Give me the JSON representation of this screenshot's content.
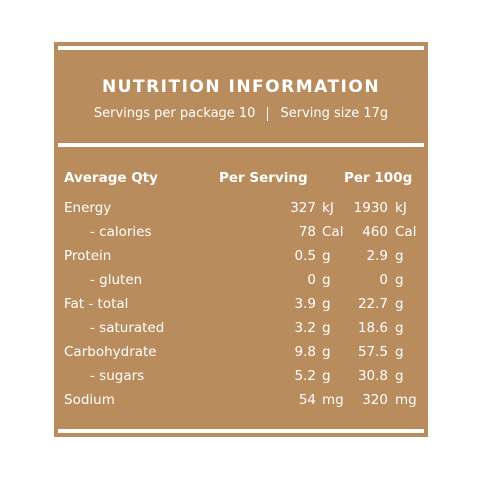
{
  "panel": {
    "title": "NUTRITION INFORMATION",
    "servings_text": "Servings per package 10",
    "serving_size_text": "Serving size 17g"
  },
  "table": {
    "headers": {
      "label": "Average Qty",
      "per_serving": "Per Serving",
      "per_100g": "Per 100g"
    },
    "rows": [
      {
        "label": "Energy",
        "ps": "327",
        "ps_unit": "kJ",
        "p100": "1930",
        "p100_unit": "kJ"
      },
      {
        "label": "- calories",
        "ps": "78",
        "ps_unit": "Cal",
        "p100": "460",
        "p100_unit": "Cal"
      },
      {
        "label": "Protein",
        "ps": "0.5",
        "ps_unit": "g",
        "p100": "2.9",
        "p100_unit": "g"
      },
      {
        "label": "- gluten",
        "ps": "0",
        "ps_unit": "g",
        "p100": "0",
        "p100_unit": "g"
      },
      {
        "label": "Fat - total",
        "ps": "3.9",
        "ps_unit": "g",
        "p100": "22.7",
        "p100_unit": "g"
      },
      {
        "label": "- saturated",
        "ps": "3.2",
        "ps_unit": "g",
        "p100": "18.6",
        "p100_unit": "g"
      },
      {
        "label": "Carbohydrate",
        "ps": "9.8",
        "ps_unit": "g",
        "p100": "57.5",
        "p100_unit": "g"
      },
      {
        "label": "- sugars",
        "ps": "5.2",
        "ps_unit": "g",
        "p100": "30.8",
        "p100_unit": "g"
      },
      {
        "label": "Sodium",
        "ps": "54",
        "ps_unit": "mg",
        "p100": "320",
        "p100_unit": "mg"
      }
    ]
  },
  "colors": {
    "panel_background": "#b98c5d",
    "text": "#ffffff",
    "page_background": "#ffffff"
  }
}
